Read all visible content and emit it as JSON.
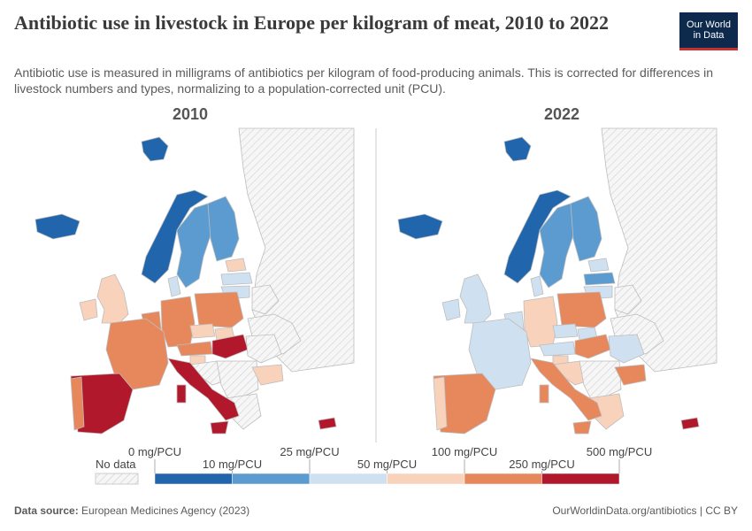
{
  "header": {
    "title": "Antibiotic use in livestock in Europe per kilogram of meat, 2010 to 2022",
    "subtitle": "Antibiotic use is measured in milligrams of antibiotics per kilogram of food-producing animals. This is corrected for differences in livestock numbers and types, normalizing to a population-corrected unit (PCU).",
    "logo_line1": "Our World",
    "logo_line2": "in Data"
  },
  "footer": {
    "source_label": "Data source:",
    "source_text": "European Medicines Agency (2023)",
    "link_text": "OurWorldinData.org/antibiotics | CC BY"
  },
  "colors": {
    "bin0": "#2166ac",
    "bin1": "#5b9bd0",
    "bin2": "#cfe1f0",
    "bin3": "#f9d2bc",
    "bin4": "#e6875c",
    "bin5": "#b2182b",
    "nodata": "#ececec",
    "land": "#ffffff",
    "border": "#bdbdbd"
  },
  "chart_data": {
    "type": "choropleth",
    "unit": "mg/PCU",
    "legend": {
      "thresholds": [
        0,
        10,
        25,
        50,
        100,
        250,
        500
      ],
      "labels": [
        "0 mg/PCU",
        "10 mg/PCU",
        "25 mg/PCU",
        "50 mg/PCU",
        "100 mg/PCU",
        "250 mg/PCU",
        "500 mg/PCU"
      ],
      "nodata_label": "No data"
    },
    "panels": [
      {
        "year": "2010",
        "bins": {
          "norway": 0,
          "iceland": 0,
          "svalbard": 0,
          "sweden": 1,
          "finland": 1,
          "denmark": 2,
          "estonia": 3,
          "latvia": 2,
          "lithuania": 2,
          "uk": 3,
          "ireland": 3,
          "france": 4,
          "iberia": 5,
          "portugal": 4,
          "benelux": 4,
          "germany": 4,
          "poland": 4,
          "czechia": 3,
          "slovakia": 3,
          "austria": 4,
          "slovenia": 3,
          "hungary": 5,
          "italy": 5,
          "sicily": 5,
          "sardinia": 5,
          "croatia": 6,
          "bulgaria": 3,
          "greece": 6,
          "cyprus": 5,
          "balkans": 6,
          "romania": 6,
          "ukraine": 6,
          "belarus": 6,
          "russia": 6
        }
      },
      {
        "year": "2022",
        "bins": {
          "norway": 0,
          "iceland": 0,
          "svalbard": 0,
          "sweden": 1,
          "finland": 1,
          "denmark": 2,
          "estonia": 2,
          "latvia": 1,
          "lithuania": 2,
          "uk": 2,
          "ireland": 2,
          "france": 2,
          "iberia": 4,
          "portugal": 3,
          "benelux": 2,
          "germany": 3,
          "poland": 4,
          "czechia": 2,
          "slovakia": 2,
          "austria": 2,
          "slovenia": 3,
          "hungary": 4,
          "italy": 4,
          "sicily": 4,
          "sardinia": 4,
          "croatia": 3,
          "bulgaria": 4,
          "greece": 3,
          "cyprus": 5,
          "balkans": 6,
          "romania": 2,
          "ukraine": 6,
          "belarus": 6,
          "russia": 6
        }
      }
    ]
  }
}
